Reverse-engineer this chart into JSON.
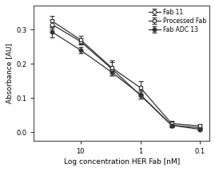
{
  "x_values": [
    30,
    10,
    3,
    1,
    0.3,
    0.1
  ],
  "fab11_y": [
    0.315,
    0.265,
    0.185,
    0.108,
    0.02,
    0.013
  ],
  "fab11_yerr": [
    0.012,
    0.01,
    0.02,
    0.01,
    0.006,
    0.004
  ],
  "processed_y": [
    0.325,
    0.27,
    0.188,
    0.13,
    0.025,
    0.018
  ],
  "processed_yerr": [
    0.015,
    0.012,
    0.022,
    0.018,
    0.007,
    0.005
  ],
  "fabADC_y": [
    0.293,
    0.24,
    0.175,
    0.11,
    0.02,
    0.008
  ],
  "fabADC_yerr": [
    0.015,
    0.01,
    0.01,
    0.013,
    0.005,
    0.004
  ],
  "xlabel": "Log concentration HER Fab [nM]",
  "ylabel": "Absorbance [AU]",
  "legend": [
    "Fab 11",
    "Processed Fab",
    "Fab ADC 13"
  ],
  "ylim": [
    -0.025,
    0.37
  ],
  "xlim_left": 60,
  "xlim_right": 0.07,
  "line_color": "#333333",
  "bg_color": "#ffffff",
  "fig_color": "#ffffff"
}
